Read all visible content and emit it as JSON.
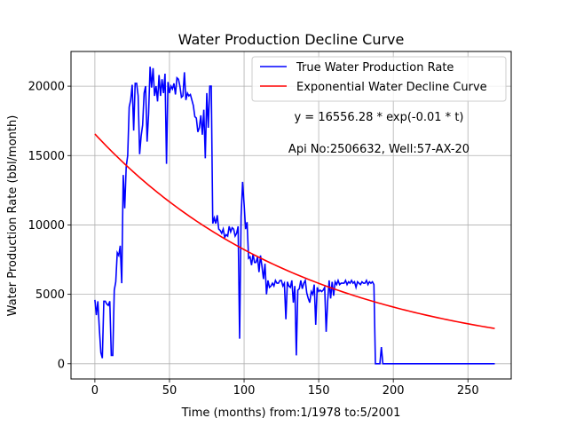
{
  "chart_data": {
    "type": "line",
    "title": "Water Production Decline Curve",
    "xlabel": "Time (months) from:1/1978 to:5/2001",
    "ylabel": "Water Production Rate (bbl/month)",
    "xlim": [
      -16,
      279
    ],
    "ylim": [
      -1100,
      22500
    ],
    "xticks": [
      0,
      50,
      100,
      150,
      200,
      250
    ],
    "yticks": [
      0,
      5000,
      10000,
      15000,
      20000
    ],
    "grid": true,
    "legend_position": "top-right",
    "annotations": [
      "y = 16556.28 * exp(-0.01 * t)",
      "Api No:2506632, Well:57-AX-20"
    ],
    "series": [
      {
        "name": "True Water Production Rate",
        "color": "#0000ff",
        "style": "line",
        "points": [
          [
            0,
            4600
          ],
          [
            1,
            3500
          ],
          [
            2,
            4500
          ],
          [
            3,
            2500
          ],
          [
            4,
            800
          ],
          [
            5,
            400
          ],
          [
            6,
            4500
          ],
          [
            7,
            4500
          ],
          [
            8,
            4300
          ],
          [
            9,
            4200
          ],
          [
            10,
            4500
          ],
          [
            11,
            600
          ],
          [
            12,
            600
          ],
          [
            13,
            5300
          ],
          [
            14,
            5900
          ],
          [
            15,
            8000
          ],
          [
            16,
            7800
          ],
          [
            17,
            8500
          ],
          [
            18,
            5800
          ],
          [
            19,
            13600
          ],
          [
            20,
            11200
          ],
          [
            21,
            14200
          ],
          [
            22,
            15000
          ],
          [
            23,
            18500
          ],
          [
            24,
            19000
          ],
          [
            25,
            20100
          ],
          [
            26,
            16800
          ],
          [
            27,
            20200
          ],
          [
            28,
            20200
          ],
          [
            29,
            19300
          ],
          [
            30,
            15100
          ],
          [
            31,
            16400
          ],
          [
            32,
            17200
          ],
          [
            33,
            19500
          ],
          [
            34,
            20000
          ],
          [
            35,
            16000
          ],
          [
            36,
            18000
          ],
          [
            37,
            21400
          ],
          [
            38,
            19900
          ],
          [
            39,
            21300
          ],
          [
            40,
            19300
          ],
          [
            41,
            20000
          ],
          [
            42,
            18900
          ],
          [
            43,
            20800
          ],
          [
            44,
            19300
          ],
          [
            45,
            20500
          ],
          [
            46,
            19500
          ],
          [
            47,
            20900
          ],
          [
            48,
            14400
          ],
          [
            49,
            20300
          ],
          [
            50,
            19500
          ],
          [
            51,
            20000
          ],
          [
            52,
            19800
          ],
          [
            53,
            20200
          ],
          [
            54,
            19400
          ],
          [
            55,
            20600
          ],
          [
            56,
            20500
          ],
          [
            57,
            20000
          ],
          [
            58,
            19200
          ],
          [
            59,
            19300
          ],
          [
            60,
            21000
          ],
          [
            61,
            19000
          ],
          [
            62,
            19500
          ],
          [
            63,
            19300
          ],
          [
            64,
            19400
          ],
          [
            65,
            19000
          ],
          [
            66,
            18600
          ],
          [
            67,
            17800
          ],
          [
            68,
            17700
          ],
          [
            69,
            16700
          ],
          [
            70,
            17000
          ],
          [
            71,
            17900
          ],
          [
            72,
            16500
          ],
          [
            73,
            18300
          ],
          [
            74,
            14800
          ],
          [
            75,
            19500
          ],
          [
            76,
            17000
          ],
          [
            77,
            20000
          ],
          [
            78,
            20000
          ],
          [
            79,
            10100
          ],
          [
            80,
            10500
          ],
          [
            81,
            10100
          ],
          [
            82,
            10700
          ],
          [
            83,
            9700
          ],
          [
            84,
            9600
          ],
          [
            85,
            9400
          ],
          [
            86,
            9700
          ],
          [
            87,
            9100
          ],
          [
            88,
            9300
          ],
          [
            89,
            9200
          ],
          [
            90,
            9900
          ],
          [
            91,
            9500
          ],
          [
            92,
            9800
          ],
          [
            93,
            9700
          ],
          [
            94,
            9200
          ],
          [
            95,
            9400
          ],
          [
            96,
            9900
          ],
          [
            97,
            1800
          ],
          [
            98,
            10600
          ],
          [
            99,
            13100
          ],
          [
            100,
            11500
          ],
          [
            101,
            9700
          ],
          [
            102,
            10200
          ],
          [
            103,
            7600
          ],
          [
            104,
            7700
          ],
          [
            105,
            7100
          ],
          [
            106,
            7900
          ],
          [
            107,
            7300
          ],
          [
            108,
            7300
          ],
          [
            109,
            7700
          ],
          [
            110,
            6600
          ],
          [
            111,
            7800
          ],
          [
            112,
            7000
          ],
          [
            113,
            6100
          ],
          [
            114,
            7200
          ],
          [
            115,
            5000
          ],
          [
            116,
            6000
          ],
          [
            117,
            5500
          ],
          [
            118,
            5600
          ],
          [
            119,
            5800
          ],
          [
            120,
            5600
          ],
          [
            121,
            6000
          ],
          [
            122,
            5800
          ],
          [
            123,
            5800
          ],
          [
            124,
            6000
          ],
          [
            125,
            6000
          ],
          [
            126,
            5600
          ],
          [
            127,
            5800
          ],
          [
            128,
            3200
          ],
          [
            129,
            5900
          ],
          [
            130,
            5600
          ],
          [
            131,
            5500
          ],
          [
            132,
            6000
          ],
          [
            133,
            4400
          ],
          [
            134,
            5600
          ],
          [
            135,
            600
          ],
          [
            136,
            5300
          ],
          [
            137,
            5400
          ],
          [
            138,
            6000
          ],
          [
            139,
            5400
          ],
          [
            140,
            5800
          ],
          [
            141,
            6000
          ],
          [
            142,
            5100
          ],
          [
            143,
            4700
          ],
          [
            144,
            4400
          ],
          [
            145,
            5200
          ],
          [
            146,
            5000
          ],
          [
            147,
            5700
          ],
          [
            148,
            2800
          ],
          [
            149,
            5500
          ],
          [
            150,
            5200
          ],
          [
            151,
            5300
          ],
          [
            152,
            5200
          ],
          [
            153,
            5300
          ],
          [
            154,
            5500
          ],
          [
            155,
            2300
          ],
          [
            156,
            4500
          ],
          [
            157,
            6000
          ],
          [
            158,
            4700
          ],
          [
            159,
            5900
          ],
          [
            160,
            4900
          ],
          [
            161,
            5900
          ],
          [
            162,
            5700
          ],
          [
            163,
            6000
          ],
          [
            164,
            5700
          ],
          [
            165,
            5800
          ],
          [
            166,
            5800
          ],
          [
            167,
            5800
          ],
          [
            168,
            6000
          ],
          [
            169,
            5700
          ],
          [
            170,
            5900
          ],
          [
            171,
            5800
          ],
          [
            172,
            6000
          ],
          [
            173,
            5800
          ],
          [
            174,
            5900
          ],
          [
            175,
            5500
          ],
          [
            176,
            5900
          ],
          [
            177,
            5800
          ],
          [
            178,
            5700
          ],
          [
            179,
            5900
          ],
          [
            180,
            5800
          ],
          [
            181,
            5800
          ],
          [
            182,
            6000
          ],
          [
            183,
            5700
          ],
          [
            184,
            5900
          ],
          [
            185,
            5800
          ],
          [
            186,
            5900
          ],
          [
            187,
            5700
          ],
          [
            188,
            0
          ],
          [
            189,
            0
          ],
          [
            190,
            0
          ],
          [
            191,
            0
          ],
          [
            192,
            1200
          ],
          [
            193,
            0
          ],
          [
            194,
            0
          ],
          [
            195,
            0
          ],
          [
            200,
            0
          ],
          [
            220,
            0
          ],
          [
            240,
            0
          ],
          [
            260,
            0
          ],
          [
            268,
            0
          ]
        ]
      },
      {
        "name": "Exponential Water Decline Curve",
        "color": "#ff0000",
        "style": "curve",
        "function": {
          "a": 16556.28,
          "b": 0.007,
          "x_start": 0,
          "x_end": 268
        }
      }
    ]
  }
}
